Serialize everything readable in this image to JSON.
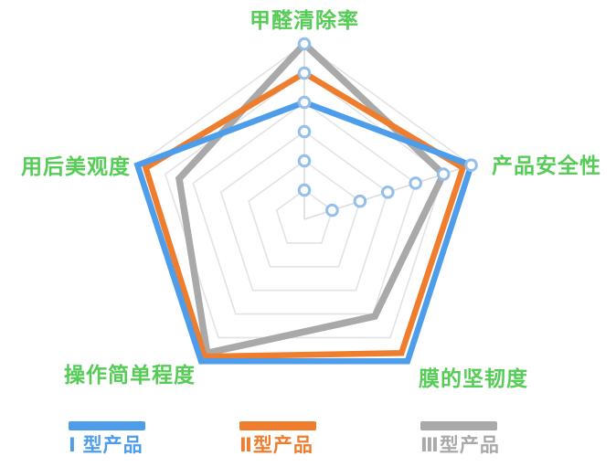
{
  "chart_data": {
    "type": "radar",
    "categories": [
      "甲醛清除率",
      "产品安全性",
      "膜的坚韧度",
      "操作简单程度",
      "用后美观度"
    ],
    "axis_max": 6,
    "grid_rings": 6,
    "grid": "on",
    "legend_position": "bottom",
    "series": [
      {
        "name": "Ⅰ 型产品",
        "color": "#4D9DEB",
        "values": [
          4,
          6,
          6,
          6,
          6
        ]
      },
      {
        "name": "Ⅱ型产品",
        "color": "#EE7D2E",
        "values": [
          5,
          5.7,
          5.65,
          5.8,
          5.7
        ]
      },
      {
        "name": "Ⅲ型产品",
        "color": "#A9A9A9",
        "values": [
          6,
          5,
          4.1,
          5.65,
          4.5
        ]
      }
    ],
    "scale_markers": {
      "axes": [
        0,
        1
      ],
      "rings": [
        1,
        2,
        3,
        4,
        5,
        6
      ],
      "stroke": "#93BFEA",
      "fill": "#FFFFFF"
    }
  },
  "colors": {
    "axis_label_green": "#55CC55",
    "grid_line": "#E3E3E3",
    "spoke_line": "#DBDBDB",
    "background": "#FFFFFF"
  }
}
